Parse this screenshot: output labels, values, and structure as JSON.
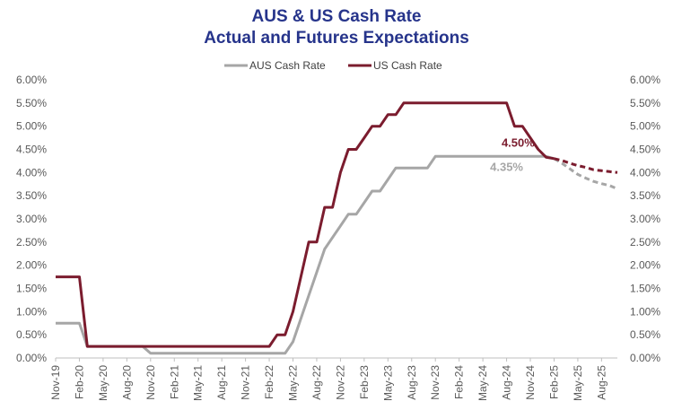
{
  "chart_data": {
    "type": "line",
    "title": "AUS & US Cash Rate",
    "subtitle": "Actual and Futures Expectations",
    "colors": {
      "aus": "#a6a6a6",
      "us": "#7b1c2e",
      "title": "#26348b"
    },
    "legend_placement": "top-center",
    "grid": false,
    "y_axis": {
      "min": 0,
      "max": 6,
      "step": 0.5,
      "format": "percent_2dp",
      "position": "both",
      "ticks": [
        "0.00%",
        "0.50%",
        "1.00%",
        "1.50%",
        "2.00%",
        "2.50%",
        "3.00%",
        "3.50%",
        "4.00%",
        "4.50%",
        "5.00%",
        "5.50%",
        "6.00%"
      ]
    },
    "x_axis": {
      "range": [
        "2019-11",
        "2025-10"
      ],
      "tick_labels": [
        "Nov-19",
        "Feb-20",
        "May-20",
        "Aug-20",
        "Nov-20",
        "Feb-21",
        "May-21",
        "Aug-21",
        "Nov-21",
        "Feb-22",
        "May-22",
        "Aug-22",
        "Nov-22",
        "Feb-23",
        "May-23",
        "Aug-23",
        "Nov-23",
        "Feb-24",
        "May-24",
        "Aug-24",
        "Nov-24",
        "Feb-25",
        "May-25",
        "Aug-25"
      ],
      "tick_dates": [
        "2019-11",
        "2020-02",
        "2020-05",
        "2020-08",
        "2020-11",
        "2021-02",
        "2021-05",
        "2021-08",
        "2021-11",
        "2022-02",
        "2022-05",
        "2022-08",
        "2022-11",
        "2023-02",
        "2023-05",
        "2023-08",
        "2023-11",
        "2024-02",
        "2024-05",
        "2024-08",
        "2024-11",
        "2025-02",
        "2025-05",
        "2025-08"
      ]
    },
    "series": [
      {
        "name": "AUS Cash Rate",
        "color": "#a6a6a6",
        "actual": [
          [
            "2019-11",
            0.75
          ],
          [
            "2020-02",
            0.75
          ],
          [
            "2020-03",
            0.25
          ],
          [
            "2020-10",
            0.25
          ],
          [
            "2020-11",
            0.1
          ],
          [
            "2022-04",
            0.1
          ],
          [
            "2022-05",
            0.35
          ],
          [
            "2022-06",
            0.85
          ],
          [
            "2022-07",
            1.35
          ],
          [
            "2022-08",
            1.85
          ],
          [
            "2022-09",
            2.35
          ],
          [
            "2022-10",
            2.6
          ],
          [
            "2022-11",
            2.85
          ],
          [
            "2022-12",
            3.1
          ],
          [
            "2023-01",
            3.1
          ],
          [
            "2023-02",
            3.35
          ],
          [
            "2023-03",
            3.6
          ],
          [
            "2023-04",
            3.6
          ],
          [
            "2023-05",
            3.85
          ],
          [
            "2023-06",
            4.1
          ],
          [
            "2023-10",
            4.1
          ],
          [
            "2023-11",
            4.35
          ],
          [
            "2025-01",
            4.35
          ],
          [
            "2025-02",
            4.3
          ]
        ],
        "expected": [
          [
            "2025-02",
            4.3
          ],
          [
            "2025-03",
            4.2
          ],
          [
            "2025-04",
            4.08
          ],
          [
            "2025-05",
            3.96
          ],
          [
            "2025-06",
            3.88
          ],
          [
            "2025-07",
            3.81
          ],
          [
            "2025-08",
            3.76
          ],
          [
            "2025-09",
            3.72
          ],
          [
            "2025-10",
            3.65
          ]
        ]
      },
      {
        "name": "US Cash Rate",
        "color": "#7b1c2e",
        "actual": [
          [
            "2019-11",
            1.75
          ],
          [
            "2020-02",
            1.75
          ],
          [
            "2020-03",
            0.25
          ],
          [
            "2022-02",
            0.25
          ],
          [
            "2022-03",
            0.5
          ],
          [
            "2022-04",
            0.5
          ],
          [
            "2022-05",
            1.0
          ],
          [
            "2022-06",
            1.75
          ],
          [
            "2022-07",
            2.5
          ],
          [
            "2022-08",
            2.5
          ],
          [
            "2022-09",
            3.25
          ],
          [
            "2022-10",
            3.25
          ],
          [
            "2022-11",
            4.0
          ],
          [
            "2022-12",
            4.5
          ],
          [
            "2023-01",
            4.5
          ],
          [
            "2023-02",
            4.75
          ],
          [
            "2023-03",
            5.0
          ],
          [
            "2023-04",
            5.0
          ],
          [
            "2023-05",
            5.25
          ],
          [
            "2023-06",
            5.25
          ],
          [
            "2023-07",
            5.5
          ],
          [
            "2024-08",
            5.5
          ],
          [
            "2024-09",
            5.0
          ],
          [
            "2024-10",
            5.0
          ],
          [
            "2024-11",
            4.75
          ],
          [
            "2024-12",
            4.5
          ],
          [
            "2025-01",
            4.33
          ],
          [
            "2025-02",
            4.3
          ]
        ],
        "expected": [
          [
            "2025-02",
            4.3
          ],
          [
            "2025-03",
            4.26
          ],
          [
            "2025-04",
            4.2
          ],
          [
            "2025-05",
            4.15
          ],
          [
            "2025-06",
            4.11
          ],
          [
            "2025-07",
            4.06
          ],
          [
            "2025-08",
            4.04
          ],
          [
            "2025-09",
            4.02
          ],
          [
            "2025-10",
            4.0
          ]
        ]
      }
    ],
    "annotations": [
      {
        "text": "4.50%",
        "series": "US Cash Rate",
        "anchor": [
          "2024-12",
          4.5
        ],
        "color": "#7b1c2e"
      },
      {
        "text": "4.35%",
        "series": "AUS Cash Rate",
        "anchor": [
          "2024-11",
          4.35
        ],
        "color": "#a6a6a6"
      }
    ]
  }
}
